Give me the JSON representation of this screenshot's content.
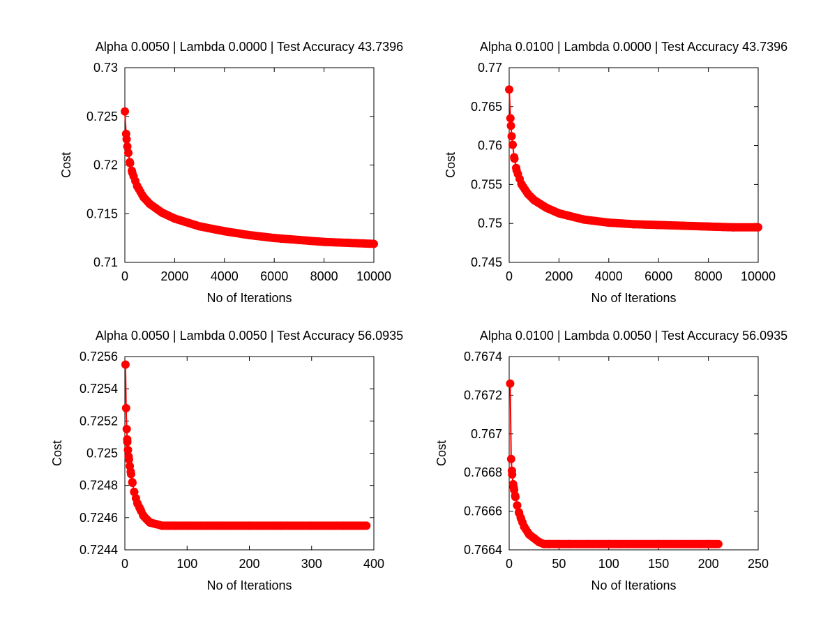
{
  "chart_data": [
    {
      "type": "line",
      "title": "Alpha 0.0050 | Lambda 0.0000 | Test Accuracy 43.7396",
      "xlabel": "No of Iterations",
      "ylabel": "Cost",
      "xlim": [
        0,
        10000
      ],
      "ylim": [
        0.71,
        0.73
      ],
      "xticks": [
        0,
        2000,
        4000,
        6000,
        8000,
        10000
      ],
      "xtick_labels": [
        "0",
        "2000",
        "4000",
        "6000",
        "8000",
        "10000"
      ],
      "yticks": [
        0.71,
        0.715,
        0.72,
        0.725,
        0.73
      ],
      "ytick_labels": [
        "0.71",
        "0.715",
        "0.72",
        "0.725",
        "0.73"
      ],
      "grid": false,
      "marker": "filled-circle",
      "color": "#ff0000",
      "series": [
        {
          "x": [
            1,
            50,
            100,
            200,
            300,
            500,
            750,
            1000,
            1500,
            2000,
            3000,
            4000,
            5000,
            6000,
            7000,
            8000,
            9000,
            10000
          ],
          "values": [
            0.7255,
            0.7232,
            0.7219,
            0.7203,
            0.7192,
            0.7178,
            0.7167,
            0.716,
            0.7151,
            0.7145,
            0.7137,
            0.7132,
            0.7128,
            0.7125,
            0.7123,
            0.7121,
            0.712,
            0.7119
          ]
        }
      ]
    },
    {
      "type": "line",
      "title": "Alpha 0.0100 | Lambda 0.0000 | Test Accuracy 43.7396",
      "xlabel": "No of Iterations",
      "ylabel": "Cost",
      "xlim": [
        0,
        10000
      ],
      "ylim": [
        0.745,
        0.77
      ],
      "xticks": [
        0,
        2000,
        4000,
        6000,
        8000,
        10000
      ],
      "xtick_labels": [
        "0",
        "2000",
        "4000",
        "6000",
        "8000",
        "10000"
      ],
      "yticks": [
        0.745,
        0.75,
        0.755,
        0.76,
        0.765,
        0.77
      ],
      "ytick_labels": [
        "0.745",
        "0.75",
        "0.755",
        "0.76",
        "0.765",
        "0.77"
      ],
      "grid": false,
      "marker": "filled-circle",
      "color": "#ff0000",
      "series": [
        {
          "x": [
            1,
            50,
            100,
            200,
            300,
            500,
            750,
            1000,
            1500,
            2000,
            3000,
            4000,
            5000,
            6000,
            7000,
            8000,
            9000,
            10000
          ],
          "values": [
            0.7672,
            0.7635,
            0.7612,
            0.7585,
            0.7568,
            0.755,
            0.7538,
            0.753,
            0.752,
            0.7513,
            0.7505,
            0.7501,
            0.7499,
            0.7498,
            0.7497,
            0.7496,
            0.7495,
            0.7495
          ]
        }
      ]
    },
    {
      "type": "line",
      "title": "Alpha 0.0050 | Lambda 0.0050 | Test Accuracy 56.0935",
      "xlabel": "No of Iterations",
      "ylabel": "Cost",
      "xlim": [
        0,
        400
      ],
      "ylim": [
        0.7244,
        0.7256
      ],
      "xticks": [
        0,
        100,
        200,
        300,
        400
      ],
      "xtick_labels": [
        "0",
        "100",
        "200",
        "300",
        "400"
      ],
      "yticks": [
        0.7244,
        0.7246,
        0.7248,
        0.725,
        0.7252,
        0.7254,
        0.7256
      ],
      "ytick_labels": [
        "0.7244",
        "0.7246",
        "0.7248",
        "0.725",
        "0.7252",
        "0.7254",
        "0.7256"
      ],
      "grid": false,
      "marker": "filled-circle",
      "color": "#ff0000",
      "series": [
        {
          "x": [
            1,
            2,
            3,
            4,
            5,
            6,
            8,
            10,
            12,
            15,
            20,
            25,
            30,
            35,
            40,
            50,
            60,
            70,
            80,
            100,
            150,
            200,
            250,
            300,
            350,
            388
          ],
          "values": [
            0.72555,
            0.72528,
            0.72515,
            0.72507,
            0.72502,
            0.72498,
            0.72492,
            0.72487,
            0.72482,
            0.72476,
            0.72469,
            0.72465,
            0.72461,
            0.72459,
            0.72457,
            0.72456,
            0.72455,
            0.72455,
            0.72455,
            0.72455,
            0.72455,
            0.72455,
            0.72455,
            0.72455,
            0.72455,
            0.72455
          ]
        }
      ]
    },
    {
      "type": "line",
      "title": "Alpha 0.0100 | Lambda 0.0050 | Test Accuracy 56.0935",
      "xlabel": "No of Iterations",
      "ylabel": "Cost",
      "xlim": [
        0,
        250
      ],
      "ylim": [
        0.7664,
        0.7674
      ],
      "xticks": [
        0,
        50,
        100,
        150,
        200,
        250
      ],
      "xtick_labels": [
        "0",
        "50",
        "100",
        "150",
        "200",
        "250"
      ],
      "yticks": [
        0.7664,
        0.7666,
        0.7668,
        0.767,
        0.7672,
        0.7674
      ],
      "ytick_labels": [
        "0.7664",
        "0.7666",
        "0.7668",
        "0.767",
        "0.7672",
        "0.7674"
      ],
      "grid": false,
      "marker": "filled-circle",
      "color": "#ff0000",
      "series": [
        {
          "x": [
            1,
            2,
            3,
            4,
            5,
            6,
            8,
            10,
            12,
            15,
            20,
            25,
            30,
            35,
            40,
            50,
            60,
            80,
            100,
            150,
            200,
            210
          ],
          "values": [
            0.76726,
            0.76687,
            0.76679,
            0.76674,
            0.76671,
            0.76668,
            0.76663,
            0.76659,
            0.76656,
            0.76652,
            0.76648,
            0.76646,
            0.76644,
            0.76643,
            0.76643,
            0.76643,
            0.76643,
            0.76643,
            0.76643,
            0.76643,
            0.76643,
            0.76643
          ]
        }
      ]
    }
  ]
}
